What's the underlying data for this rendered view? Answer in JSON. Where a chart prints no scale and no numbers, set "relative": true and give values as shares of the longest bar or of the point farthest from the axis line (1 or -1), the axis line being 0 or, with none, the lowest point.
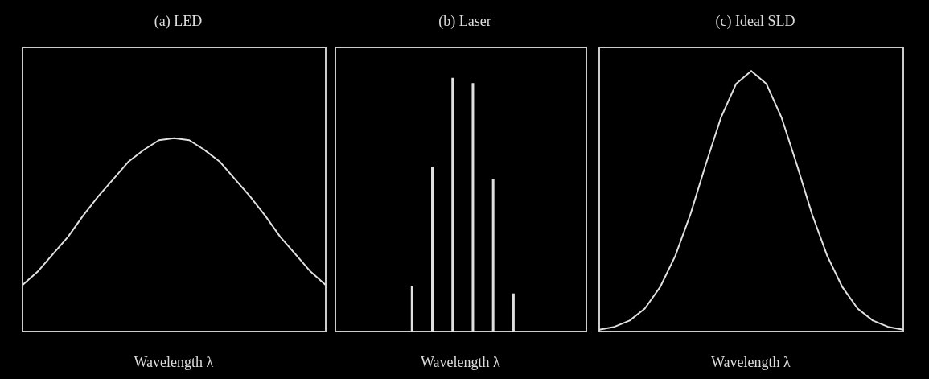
{
  "chart_data": [
    {
      "type": "line",
      "title": "(a) LED",
      "xlabel": "Wavelength λ",
      "relative": true,
      "color": "#e0e0e0",
      "categories": [
        null,
        null,
        null,
        null,
        null,
        null,
        null,
        null,
        null,
        null,
        null,
        null,
        null,
        null,
        null,
        null,
        null,
        null,
        null,
        null,
        null
      ],
      "values": [
        0.24,
        0.31,
        0.4,
        0.49,
        0.6,
        0.7,
        0.79,
        0.88,
        0.94,
        0.99,
        1,
        0.99,
        0.94,
        0.88,
        0.79,
        0.7,
        0.6,
        0.49,
        0.4,
        0.31,
        0.24
      ]
    },
    {
      "type": "bar",
      "title": "(b) Laser",
      "xlabel": "Wavelength λ",
      "relative": true,
      "color": "#e0e0e0",
      "categories": [
        null,
        null,
        null,
        null,
        null,
        null
      ],
      "values": [
        0.18,
        0.65,
        1,
        0.98,
        0.6,
        0.15
      ]
    },
    {
      "type": "line",
      "title": "(c) Ideal SLD",
      "xlabel": "Wavelength λ",
      "relative": true,
      "color": "#e0e0e0",
      "categories": [
        null,
        null,
        null,
        null,
        null,
        null,
        null,
        null,
        null,
        null,
        null,
        null,
        null,
        null,
        null,
        null,
        null,
        null,
        null,
        null,
        null
      ],
      "values": [
        0.007,
        0.018,
        0.042,
        0.088,
        0.17,
        0.29,
        0.45,
        0.64,
        0.82,
        0.95,
        1,
        0.95,
        0.82,
        0.64,
        0.45,
        0.29,
        0.17,
        0.088,
        0.042,
        0.018,
        0.007
      ]
    }
  ]
}
